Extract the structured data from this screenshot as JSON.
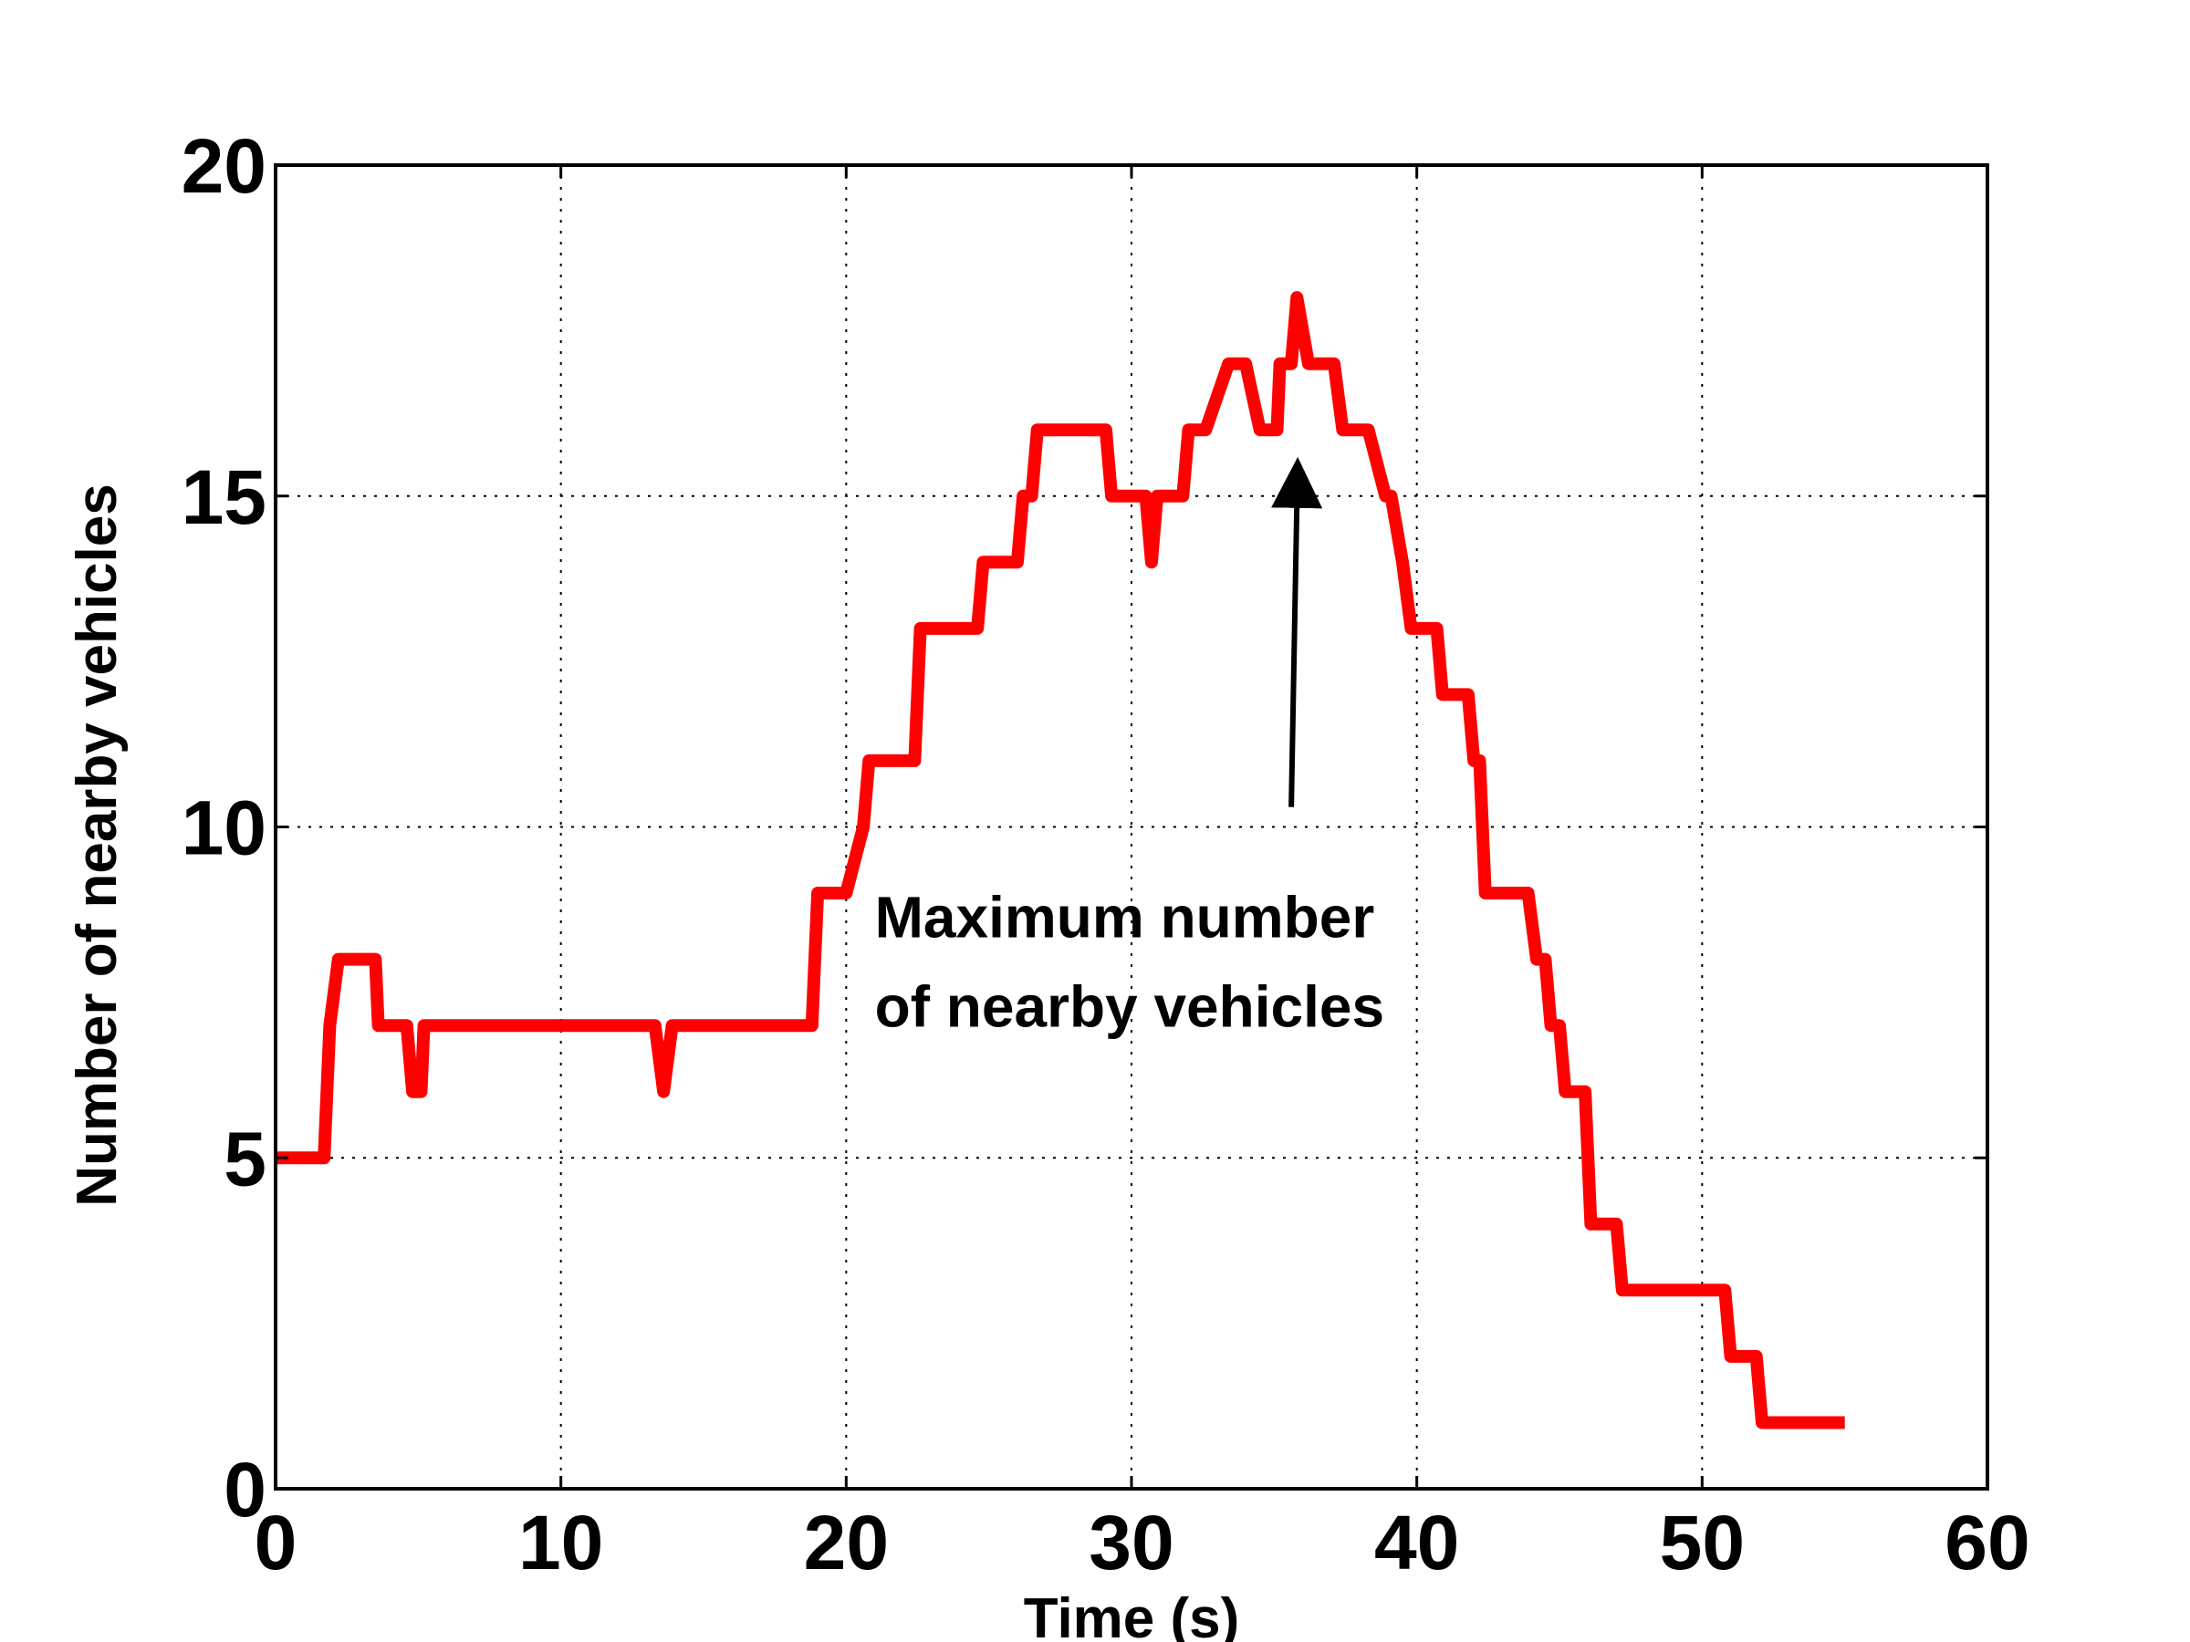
{
  "chart_data": {
    "type": "line",
    "title": "",
    "xlabel": "Time (s)",
    "ylabel": "Number of nearby vehicles",
    "xlim": [
      0,
      60
    ],
    "ylim": [
      0,
      20
    ],
    "xticks": [
      0,
      10,
      20,
      30,
      40,
      50,
      60
    ],
    "yticks": [
      0,
      5,
      10,
      15,
      20
    ],
    "xtick_labels": [
      "0",
      "10",
      "20",
      "30",
      "40",
      "50",
      "60"
    ],
    "ytick_labels": [
      "0",
      "5",
      "10",
      "15",
      "20"
    ],
    "grid": true,
    "line_color": "#ff0000",
    "annotation": {
      "text_lines": [
        "Maximum number",
        "of nearby vehicles"
      ],
      "text_anchor": [
        21.0,
        8.5
      ],
      "arrow_tail": [
        35.6,
        10.3
      ],
      "arrow_head": [
        35.8,
        15.8
      ]
    },
    "series": [
      {
        "x": [
          0,
          1.7,
          1.9,
          2.2,
          3.5,
          3.6,
          4.6,
          4.8,
          5.1,
          5.2,
          13.3,
          13.6,
          13.9,
          18.8,
          19.0,
          20.0,
          20.6,
          20.8,
          22.4,
          22.6,
          24.6,
          24.8,
          26.0,
          26.2,
          26.5,
          26.7,
          29.1,
          29.3,
          30.5,
          30.7,
          30.9,
          31.8,
          32.0,
          32.6,
          33.4,
          34.0,
          34.5,
          35.1,
          35.2,
          35.6,
          35.8,
          36.2,
          37.1,
          37.4,
          38.3,
          38.9,
          39.1,
          39.5,
          39.8,
          40.7,
          40.9,
          41.8,
          42.0,
          42.2,
          42.4,
          43.9,
          44.2,
          44.5,
          44.7,
          45.0,
          45.2,
          45.9,
          46.1,
          47.0,
          47.2,
          50.8,
          51.0,
          51.9,
          52.1,
          55.0
        ],
        "y": [
          5,
          5,
          7,
          8,
          8,
          7,
          7,
          6,
          6,
          7,
          7,
          6,
          7,
          7,
          9,
          9,
          10,
          11,
          11,
          13,
          13,
          14,
          14,
          15,
          15,
          16,
          16,
          15,
          15,
          14,
          15,
          15,
          16,
          16,
          17,
          17,
          16,
          16,
          17,
          17,
          18,
          17,
          17,
          16,
          16,
          15,
          15,
          14,
          13,
          13,
          12,
          12,
          11,
          11,
          9,
          9,
          8,
          8,
          7,
          7,
          6,
          6,
          4,
          4,
          3,
          3,
          2,
          2,
          1,
          1
        ]
      }
    ]
  }
}
